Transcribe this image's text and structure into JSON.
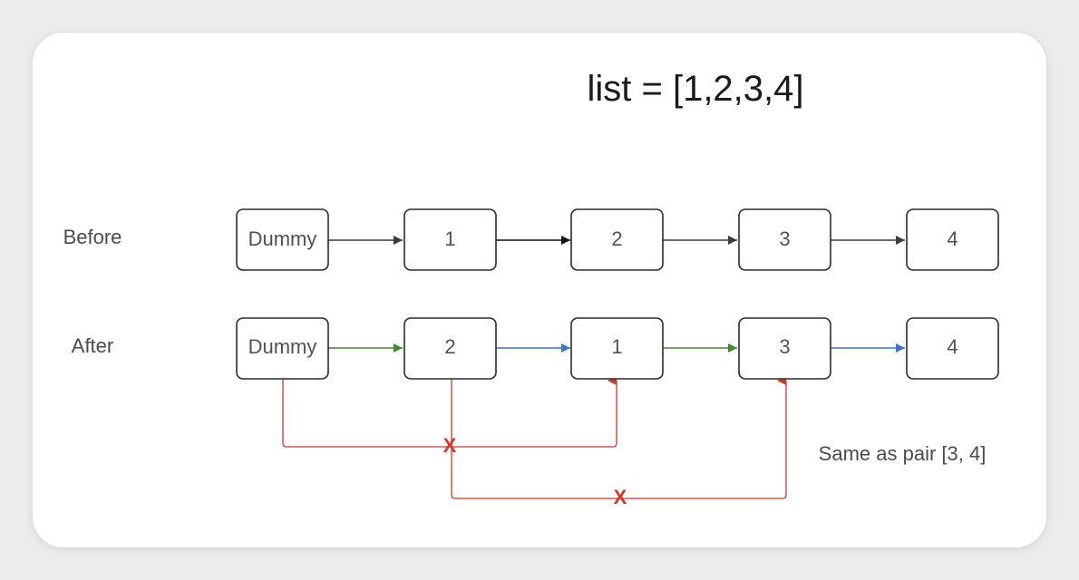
{
  "title": "list = [1,2,3,4]",
  "rows": {
    "before": {
      "label": "Before",
      "nodes": [
        "Dummy",
        "1",
        "2",
        "3",
        "4"
      ],
      "arrow_colors": [
        "#3a3d44",
        "#111111",
        "#3a3d44",
        "#3a3d44"
      ]
    },
    "after": {
      "label": "After",
      "nodes": [
        "Dummy",
        "2",
        "1",
        "3",
        "4"
      ],
      "arrow_colors": [
        "#3f8a2e",
        "#3a73d6",
        "#3f8a2e",
        "#3a73d6"
      ]
    }
  },
  "old_links": {
    "color": "#d1382e",
    "marks": [
      "X",
      "X"
    ]
  },
  "note": "Same as pair [3, 4]"
}
